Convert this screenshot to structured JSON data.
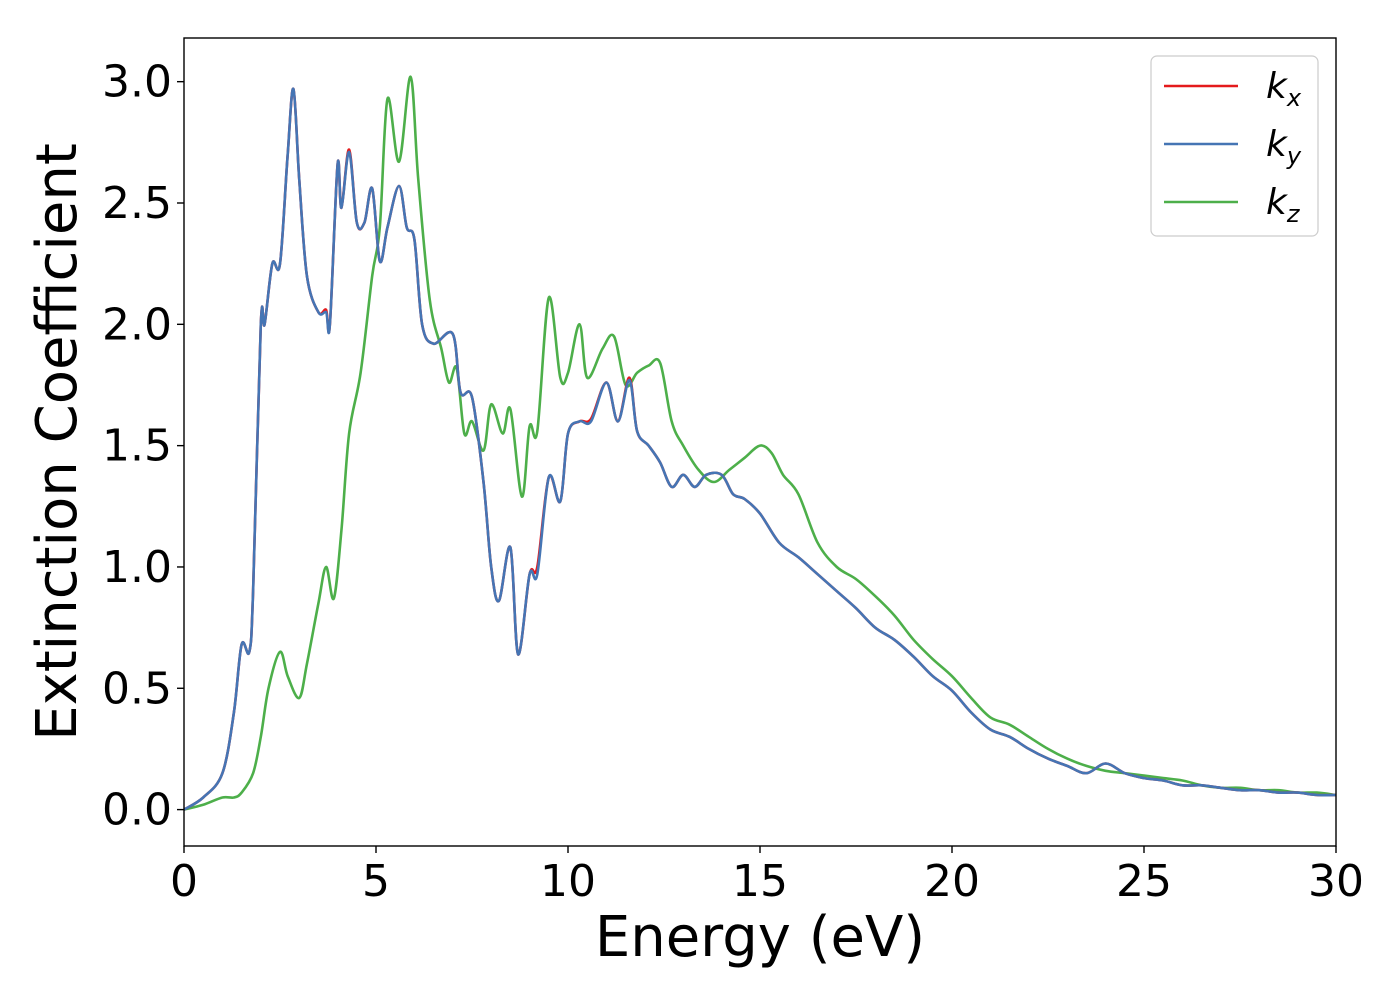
{
  "chart_data": {
    "type": "line",
    "title": "",
    "xlabel": "Energy (eV)",
    "ylabel": "Extinction Coefficient",
    "xlim": [
      0,
      30
    ],
    "ylim": [
      -0.15,
      3.18
    ],
    "xticks": [
      0,
      5,
      10,
      15,
      20,
      25,
      30
    ],
    "yticks": [
      0.0,
      0.5,
      1.0,
      1.5,
      2.0,
      2.5,
      3.0
    ],
    "xtick_labels": [
      "0",
      "5",
      "10",
      "15",
      "20",
      "25",
      "30"
    ],
    "ytick_labels": [
      "0.0",
      "0.5",
      "1.0",
      "1.5",
      "2.0",
      "2.5",
      "3.0"
    ],
    "grid": false,
    "legend_position": "top-right",
    "series": [
      {
        "name": "k_x",
        "legend_main": "k",
        "legend_sub": "x",
        "color": "#e41a1c",
        "x": [
          0,
          0.5,
          1.0,
          1.3,
          1.5,
          1.7,
          1.8,
          2.0,
          2.1,
          2.3,
          2.5,
          2.7,
          2.85,
          3.0,
          3.2,
          3.5,
          3.7,
          3.8,
          4.0,
          4.1,
          4.3,
          4.5,
          4.7,
          4.9,
          5.1,
          5.3,
          5.6,
          5.8,
          6.0,
          6.2,
          6.5,
          7.0,
          7.2,
          7.5,
          7.8,
          8.0,
          8.2,
          8.5,
          8.7,
          9.0,
          9.2,
          9.5,
          9.8,
          10.0,
          10.3,
          10.6,
          11.0,
          11.3,
          11.6,
          11.8,
          12.1,
          12.4,
          12.7,
          13.0,
          13.3,
          13.6,
          14.0,
          14.3,
          14.6,
          15.0,
          15.5,
          16.0,
          16.5,
          17.0,
          17.5,
          18.0,
          18.5,
          19.0,
          19.5,
          20.0,
          20.5,
          21.0,
          21.5,
          22.0,
          22.5,
          23.0,
          23.5,
          24.0,
          24.5,
          25.0,
          25.5,
          26.0,
          26.5,
          27.0,
          27.5,
          28.0,
          28.5,
          29.0,
          29.5,
          30.0
        ],
        "y": [
          0.0,
          0.05,
          0.15,
          0.4,
          0.68,
          0.65,
          0.9,
          2.0,
          2.0,
          2.25,
          2.25,
          2.7,
          2.97,
          2.6,
          2.2,
          2.05,
          2.06,
          2.0,
          2.66,
          2.48,
          2.72,
          2.42,
          2.42,
          2.56,
          2.26,
          2.4,
          2.57,
          2.4,
          2.35,
          2.0,
          1.92,
          1.96,
          1.72,
          1.7,
          1.35,
          1.0,
          0.86,
          1.08,
          0.64,
          0.97,
          1.0,
          1.37,
          1.27,
          1.55,
          1.6,
          1.61,
          1.76,
          1.6,
          1.78,
          1.56,
          1.5,
          1.43,
          1.33,
          1.38,
          1.33,
          1.38,
          1.38,
          1.3,
          1.28,
          1.22,
          1.1,
          1.04,
          0.97,
          0.9,
          0.83,
          0.75,
          0.7,
          0.63,
          0.55,
          0.49,
          0.4,
          0.33,
          0.3,
          0.25,
          0.21,
          0.18,
          0.15,
          0.19,
          0.15,
          0.13,
          0.12,
          0.1,
          0.1,
          0.09,
          0.08,
          0.08,
          0.07,
          0.07,
          0.06,
          0.06
        ]
      },
      {
        "name": "k_y",
        "legend_main": "k",
        "legend_sub": "y",
        "color": "#4575b4",
        "x": [
          0,
          0.5,
          1.0,
          1.3,
          1.5,
          1.7,
          1.8,
          2.0,
          2.1,
          2.3,
          2.5,
          2.7,
          2.85,
          3.0,
          3.2,
          3.5,
          3.7,
          3.8,
          4.0,
          4.1,
          4.3,
          4.5,
          4.7,
          4.9,
          5.1,
          5.3,
          5.6,
          5.8,
          6.0,
          6.2,
          6.5,
          7.0,
          7.2,
          7.5,
          7.8,
          8.0,
          8.2,
          8.5,
          8.7,
          9.0,
          9.2,
          9.5,
          9.8,
          10.0,
          10.3,
          10.6,
          11.0,
          11.3,
          11.6,
          11.8,
          12.1,
          12.4,
          12.7,
          13.0,
          13.3,
          13.6,
          14.0,
          14.3,
          14.6,
          15.0,
          15.5,
          16.0,
          16.5,
          17.0,
          17.5,
          18.0,
          18.5,
          19.0,
          19.5,
          20.0,
          20.5,
          21.0,
          21.5,
          22.0,
          22.5,
          23.0,
          23.5,
          24.0,
          24.5,
          25.0,
          25.5,
          26.0,
          26.5,
          27.0,
          27.5,
          28.0,
          28.5,
          29.0,
          29.5,
          30.0
        ],
        "y": [
          0.0,
          0.05,
          0.15,
          0.4,
          0.68,
          0.65,
          0.9,
          2.0,
          2.0,
          2.25,
          2.25,
          2.7,
          2.97,
          2.6,
          2.2,
          2.05,
          2.05,
          2.0,
          2.66,
          2.48,
          2.71,
          2.42,
          2.42,
          2.56,
          2.26,
          2.4,
          2.57,
          2.4,
          2.35,
          2.0,
          1.92,
          1.96,
          1.72,
          1.7,
          1.35,
          1.0,
          0.86,
          1.08,
          0.64,
          0.97,
          0.97,
          1.37,
          1.27,
          1.55,
          1.6,
          1.6,
          1.76,
          1.6,
          1.77,
          1.56,
          1.5,
          1.43,
          1.33,
          1.38,
          1.33,
          1.38,
          1.38,
          1.3,
          1.28,
          1.22,
          1.1,
          1.04,
          0.97,
          0.9,
          0.83,
          0.75,
          0.7,
          0.63,
          0.55,
          0.49,
          0.4,
          0.33,
          0.3,
          0.25,
          0.21,
          0.18,
          0.15,
          0.19,
          0.15,
          0.13,
          0.12,
          0.1,
          0.1,
          0.09,
          0.08,
          0.08,
          0.07,
          0.07,
          0.06,
          0.06
        ]
      },
      {
        "name": "k_z",
        "legend_main": "k",
        "legend_sub": "z",
        "color": "#4daf4a",
        "x": [
          0,
          0.5,
          1.0,
          1.3,
          1.5,
          1.8,
          2.0,
          2.2,
          2.5,
          2.7,
          3.0,
          3.2,
          3.5,
          3.7,
          3.9,
          4.1,
          4.3,
          4.6,
          4.9,
          5.1,
          5.3,
          5.6,
          5.9,
          6.1,
          6.4,
          6.7,
          6.9,
          7.1,
          7.3,
          7.5,
          7.8,
          8.0,
          8.3,
          8.5,
          8.8,
          9.0,
          9.2,
          9.5,
          9.8,
          10.0,
          10.3,
          10.5,
          10.9,
          11.2,
          11.5,
          11.8,
          12.1,
          12.4,
          12.7,
          13.0,
          13.4,
          13.8,
          14.2,
          14.6,
          15.0,
          15.3,
          15.6,
          16.0,
          16.5,
          17.0,
          17.5,
          18.0,
          18.5,
          19.0,
          19.5,
          20.0,
          20.5,
          21.0,
          21.5,
          22.0,
          22.5,
          23.0,
          23.5,
          24.0,
          24.5,
          25.0,
          25.5,
          26.0,
          26.5,
          27.0,
          27.5,
          28.0,
          28.5,
          29.0,
          29.5,
          30.0
        ],
        "y": [
          0.0,
          0.02,
          0.05,
          0.05,
          0.07,
          0.15,
          0.3,
          0.5,
          0.65,
          0.55,
          0.46,
          0.6,
          0.85,
          1.0,
          0.87,
          1.15,
          1.55,
          1.8,
          2.2,
          2.4,
          2.93,
          2.67,
          3.02,
          2.6,
          2.1,
          1.9,
          1.76,
          1.82,
          1.55,
          1.6,
          1.48,
          1.67,
          1.55,
          1.65,
          1.29,
          1.58,
          1.56,
          2.11,
          1.78,
          1.8,
          2.0,
          1.78,
          1.9,
          1.95,
          1.75,
          1.8,
          1.83,
          1.84,
          1.6,
          1.5,
          1.4,
          1.35,
          1.4,
          1.45,
          1.5,
          1.47,
          1.38,
          1.3,
          1.1,
          1.0,
          0.95,
          0.88,
          0.8,
          0.7,
          0.62,
          0.55,
          0.46,
          0.38,
          0.35,
          0.3,
          0.25,
          0.21,
          0.18,
          0.16,
          0.15,
          0.14,
          0.13,
          0.12,
          0.1,
          0.09,
          0.09,
          0.08,
          0.08,
          0.07,
          0.07,
          0.06
        ]
      }
    ]
  }
}
